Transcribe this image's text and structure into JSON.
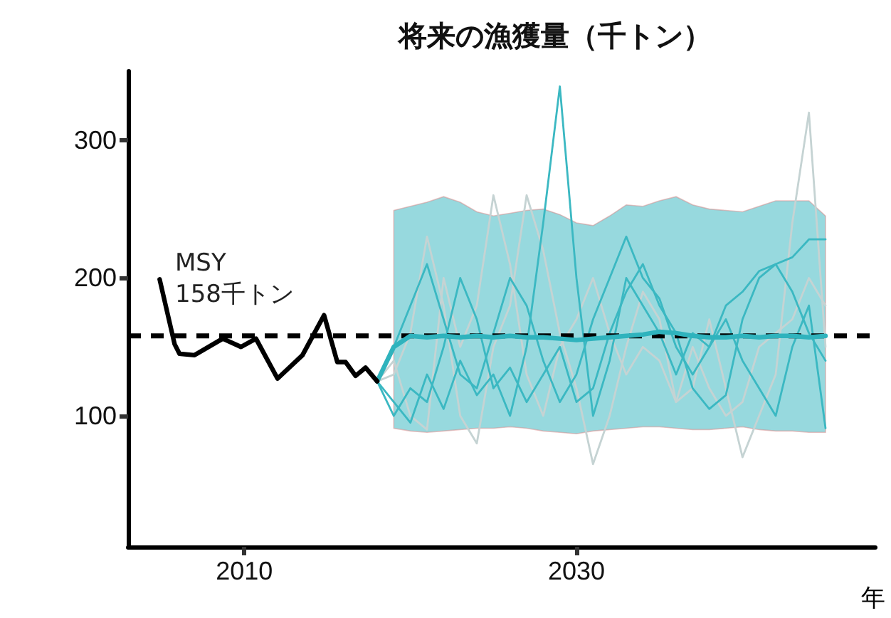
{
  "chart_data": {
    "type": "line",
    "title": "将来の漁獲量（千トン）",
    "xlabel": "年",
    "xlim": [
      2003,
      2048
    ],
    "xticks": [
      2010,
      2030
    ],
    "ylim": [
      5,
      350
    ],
    "yticks": [
      100,
      200,
      300
    ],
    "grid": false,
    "marker": "none",
    "ref_lines": [
      {
        "axis": "y",
        "value": 158,
        "label": "MSY\n158千トン",
        "color": "#000000",
        "line_style": "dashed"
      }
    ],
    "series": [
      {
        "color": "#c5d3d3",
        "x": [
          2018,
          2019,
          2020,
          2021,
          2022,
          2023,
          2024,
          2025,
          2026,
          2027,
          2028,
          2029,
          2030,
          2031,
          2032,
          2033,
          2034,
          2035,
          2036,
          2037,
          2038,
          2039,
          2040,
          2041,
          2042,
          2043,
          2044,
          2045
        ],
        "values": [
          125,
          130,
          160,
          230,
          180,
          100,
          80,
          150,
          180,
          260,
          220,
          160,
          120,
          65,
          100,
          150,
          190,
          170,
          110,
          120,
          170,
          120,
          70,
          100,
          130,
          240,
          320,
          150
        ]
      },
      {
        "color": "#c5d3d3",
        "x": [
          2018,
          2019,
          2020,
          2021,
          2022,
          2023,
          2024,
          2025,
          2026,
          2027,
          2028,
          2029,
          2030,
          2031,
          2032,
          2033,
          2034,
          2035,
          2036,
          2037,
          2038,
          2039,
          2040,
          2041,
          2042,
          2043,
          2044,
          2045
        ],
        "values": [
          125,
          140,
          100,
          90,
          200,
          150,
          180,
          260,
          210,
          130,
          100,
          150,
          170,
          200,
          160,
          130,
          150,
          140,
          110,
          150,
          120,
          100,
          110,
          150,
          160,
          170,
          200,
          180
        ]
      },
      {
        "color": "#3bb8c2",
        "x": [
          2018,
          2019,
          2020,
          2021,
          2022,
          2023,
          2024,
          2025,
          2026,
          2027,
          2028,
          2029,
          2030,
          2031,
          2032,
          2033,
          2034,
          2035,
          2036,
          2037,
          2038,
          2039,
          2040,
          2041,
          2042,
          2043,
          2044,
          2045
        ],
        "values": [
          125,
          110,
          95,
          130,
          105,
          140,
          115,
          130,
          100,
          150,
          240,
          339,
          200,
          100,
          140,
          200,
          180,
          160,
          130,
          160,
          150,
          170,
          140,
          120,
          100,
          150,
          180,
          91
        ]
      },
      {
        "color": "#3bb8c2",
        "x": [
          2018,
          2019,
          2020,
          2021,
          2022,
          2023,
          2024,
          2025,
          2026,
          2027,
          2028,
          2029,
          2030,
          2031,
          2032,
          2033,
          2034,
          2035,
          2036,
          2037,
          2038,
          2039,
          2040,
          2041,
          2042,
          2043,
          2044,
          2045
        ],
        "values": [
          125,
          150,
          180,
          210,
          170,
          130,
          120,
          160,
          200,
          180,
          140,
          110,
          130,
          170,
          200,
          230,
          200,
          185,
          150,
          130,
          150,
          180,
          190,
          205,
          210,
          215,
          228,
          228
        ]
      },
      {
        "color": "#3bb8c2",
        "x": [
          2018,
          2019,
          2020,
          2021,
          2022,
          2023,
          2024,
          2025,
          2026,
          2027,
          2028,
          2029,
          2030,
          2031,
          2032,
          2033,
          2034,
          2035,
          2036,
          2037,
          2038,
          2039,
          2040,
          2041,
          2042,
          2043,
          2044,
          2045
        ],
        "values": [
          125,
          100,
          120,
          110,
          150,
          200,
          170,
          120,
          135,
          110,
          130,
          150,
          110,
          120,
          160,
          190,
          210,
          180,
          160,
          120,
          105,
          115,
          170,
          200,
          210,
          190,
          160,
          140
        ]
      },
      {
        "color": "#2fb3bd",
        "x": [
          2018,
          2019,
          2020,
          2021,
          2022,
          2023,
          2024,
          2025,
          2026,
          2027,
          2028,
          2029,
          2030,
          2031,
          2032,
          2033,
          2034,
          2035,
          2036,
          2037,
          2038,
          2039,
          2040,
          2041,
          2042,
          2043,
          2044,
          2045
        ],
        "values": [
          125,
          150,
          158,
          157,
          158,
          157,
          158,
          157,
          158,
          157,
          157,
          156,
          155,
          156,
          157,
          158,
          159,
          161,
          160,
          158,
          157,
          157,
          158,
          157,
          158,
          158,
          157,
          158
        ],
        "lower": [
          null,
          91,
          89,
          88,
          89,
          90,
          91,
          91,
          92,
          91,
          89,
          88,
          87,
          89,
          90,
          91,
          92,
          92,
          91,
          90,
          90,
          91,
          92,
          90,
          89,
          89,
          88,
          88
        ],
        "upper": [
          null,
          249,
          252,
          255,
          259,
          255,
          248,
          245,
          247,
          249,
          250,
          246,
          240,
          238,
          245,
          253,
          252,
          256,
          259,
          253,
          250,
          249,
          248,
          252,
          256,
          256,
          256,
          245
        ]
      },
      {
        "color": "#000000",
        "x": [
          2004.9,
          2005.8,
          2006.1,
          2007,
          2008.7,
          2009.8,
          2010.7,
          2012,
          2013.5,
          2014.8,
          2015.6,
          2016.1,
          2016.7,
          2017.3,
          2018
        ],
        "values": [
          199,
          152,
          145,
          144,
          156,
          150,
          156,
          127,
          144,
          173,
          139,
          139,
          129,
          135,
          125
        ]
      }
    ]
  }
}
